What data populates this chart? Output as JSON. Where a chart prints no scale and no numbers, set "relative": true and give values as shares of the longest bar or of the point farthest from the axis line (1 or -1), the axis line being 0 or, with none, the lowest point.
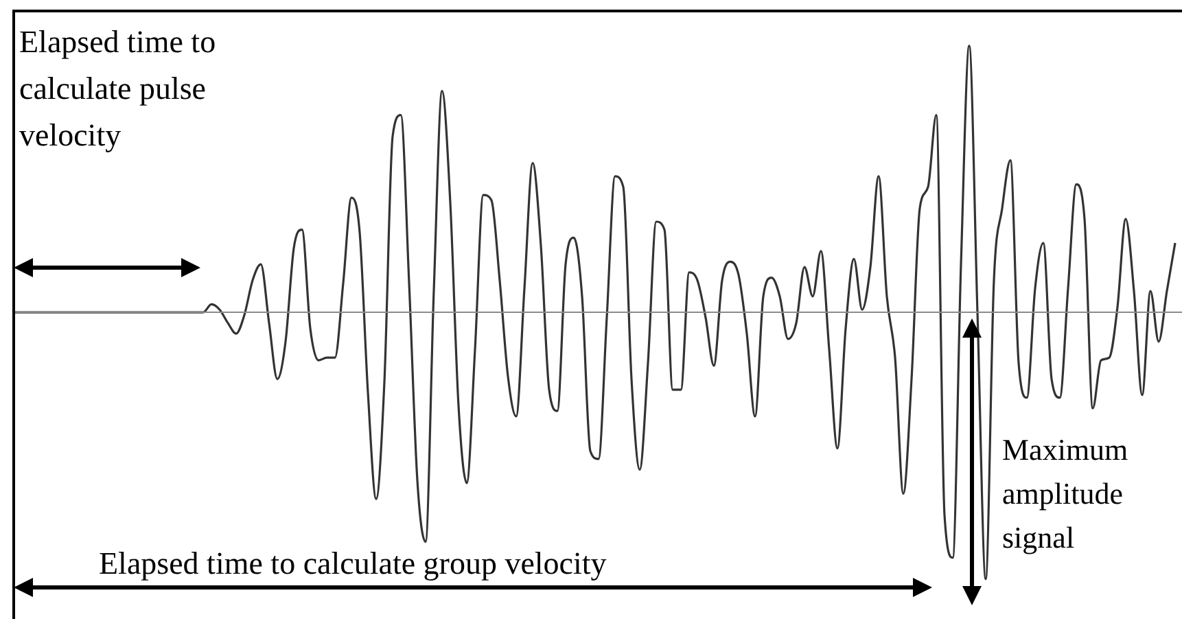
{
  "chart_data": {
    "type": "line",
    "relative": true,
    "legend": false,
    "marker": "none",
    "line_style": "solid",
    "annotations": [
      "Elapsed time to calculate pulse velocity",
      "Elapsed time to calculate group velocity",
      "Maximum amplitude signal"
    ],
    "categories": [
      null,
      null,
      null,
      null,
      null,
      null,
      null,
      null,
      null,
      null,
      null,
      null,
      null,
      null,
      null,
      null,
      null,
      null,
      null,
      null,
      null,
      null,
      null,
      null,
      null,
      null,
      null,
      null,
      null,
      null,
      null,
      null,
      null,
      null,
      null,
      null,
      null,
      null,
      null,
      null,
      null,
      null,
      null,
      null,
      null,
      null,
      null,
      null,
      null,
      null,
      null,
      null,
      null,
      null,
      null,
      null,
      null,
      null,
      null,
      null,
      null,
      null,
      null,
      null,
      null,
      null,
      null,
      null,
      null,
      null,
      null,
      null,
      null,
      null,
      null,
      null,
      null,
      null,
      null,
      null,
      null,
      null,
      null,
      null,
      null,
      null,
      null,
      null,
      null,
      null,
      null,
      null,
      null,
      null,
      null,
      null,
      null,
      null,
      null,
      null,
      null,
      null,
      null,
      null,
      null,
      null,
      null,
      null,
      null,
      null,
      null,
      null,
      null,
      null,
      null,
      null,
      null,
      null,
      null,
      null,
      null,
      null,
      null,
      null,
      null,
      null,
      null,
      null,
      null,
      null,
      null,
      null,
      null,
      null,
      null,
      null,
      null,
      null,
      null,
      null,
      null,
      null
    ],
    "series": [
      {
        "color": "#333333",
        "values": [
          0,
          0,
          0,
          0,
          0,
          0,
          0,
          0,
          0,
          0,
          0,
          0,
          0,
          0,
          0,
          0,
          0,
          0,
          0,
          0,
          0,
          0,
          0,
          0,
          0.03,
          0.01,
          -0.04,
          -0.08,
          -0.01,
          0.12,
          0.18,
          -0.04,
          -0.25,
          -0.11,
          0.24,
          0.31,
          -0.06,
          -0.18,
          -0.17,
          -0.17,
          0.11,
          0.43,
          0.3,
          -0.3,
          -0.7,
          -0.26,
          0.66,
          0.74,
          0.11,
          -0.63,
          -0.86,
          0.08,
          0.83,
          0.41,
          -0.35,
          -0.64,
          -0.14,
          0.44,
          0.42,
          0.12,
          -0.24,
          -0.39,
          0.09,
          0.56,
          0.25,
          -0.29,
          -0.37,
          0.18,
          0.28,
          0.06,
          -0.52,
          -0.55,
          -0.02,
          0.51,
          0.47,
          -0.25,
          -0.59,
          -0.19,
          0.34,
          0.31,
          -0.29,
          -0.29,
          0.15,
          0.12,
          -0.02,
          -0.2,
          0.12,
          0.19,
          0.14,
          -0.08,
          -0.39,
          0.06,
          0.13,
          0.06,
          -0.1,
          -0.04,
          0.17,
          0.06,
          0.23,
          -0.14,
          -0.51,
          -0.06,
          0.2,
          0.01,
          0.17,
          0.51,
          0.06,
          -0.17,
          -0.68,
          -0.25,
          0.39,
          0.47,
          0.74,
          -0.76,
          -0.92,
          0.18,
          1,
          0,
          -1,
          0.12,
          0.39,
          0.57,
          -0.19,
          -0.32,
          0.09,
          0.26,
          -0.25,
          -0.32,
          0.09,
          0.48,
          0.35,
          -0.36,
          -0.18,
          -0.17,
          0.02,
          0.35,
          0.08,
          -0.31,
          0.08,
          -0.11,
          0.08,
          0.26
        ]
      }
    ]
  }
}
